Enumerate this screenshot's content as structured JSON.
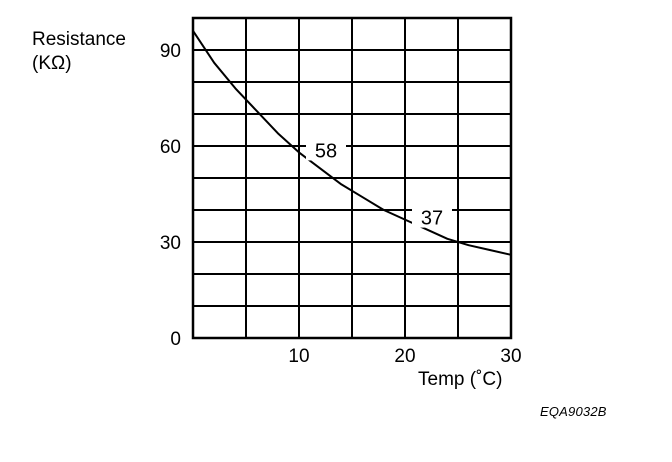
{
  "chart_data": {
    "type": "line",
    "ylabel_line1": "Resistance",
    "ylabel_line2": "(KΩ)",
    "xlabel": "Temp (˚C)",
    "xlim": [
      0,
      30
    ],
    "ylim": [
      0,
      100
    ],
    "x_ticks": [
      10,
      20,
      30
    ],
    "y_ticks": [
      0,
      30,
      60,
      90
    ],
    "grid": true,
    "series": [
      {
        "x": [
          0,
          2,
          4,
          6,
          8,
          10,
          12,
          14,
          16,
          18,
          20,
          22,
          24,
          26,
          28,
          30
        ],
        "values": [
          96,
          86,
          78,
          71,
          64,
          58,
          53,
          48,
          44,
          40,
          37,
          34,
          31,
          29,
          27.5,
          26
        ]
      }
    ],
    "annotations": [
      {
        "text": "58",
        "x": 10,
        "y": 58
      },
      {
        "text": "37",
        "x": 20,
        "y": 37
      }
    ]
  },
  "figure_code": "EQA9032B"
}
